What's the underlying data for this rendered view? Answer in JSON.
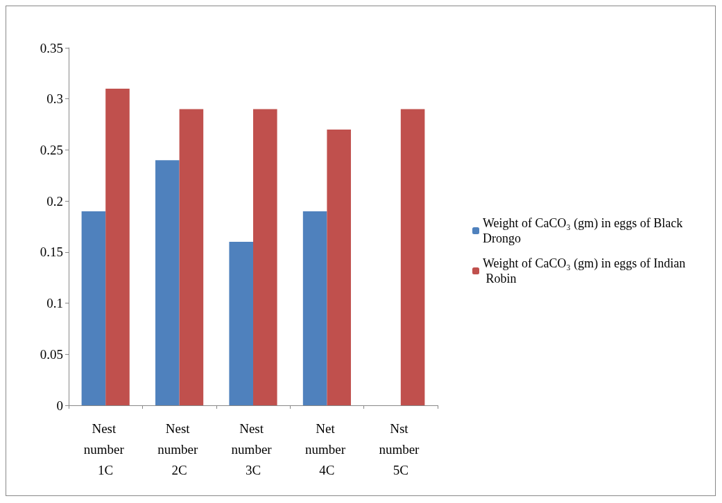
{
  "chart_data": {
    "type": "bar",
    "categories": [
      "Nest number 1C",
      "Nest number 2C",
      "Nest number 3C",
      "Net number 4C",
      "Nst number 5C"
    ],
    "series": [
      {
        "name": "Weight of CaCO₃ (gm) in eggs of Black Drongo",
        "color": "#4f81bd",
        "values": [
          0.19,
          0.24,
          0.16,
          0.19,
          0
        ]
      },
      {
        "name": "Weight of CaCO₃ (gm) in eggs of Indian Robin",
        "color": "#c0504d",
        "values": [
          0.31,
          0.29,
          0.29,
          0.27,
          0.29
        ]
      }
    ],
    "ylim": [
      0,
      0.35
    ],
    "yticks": [
      0,
      0.05,
      0.1,
      0.15,
      0.2,
      0.25,
      0.3,
      0.35
    ],
    "grid": false,
    "legend": "right"
  }
}
